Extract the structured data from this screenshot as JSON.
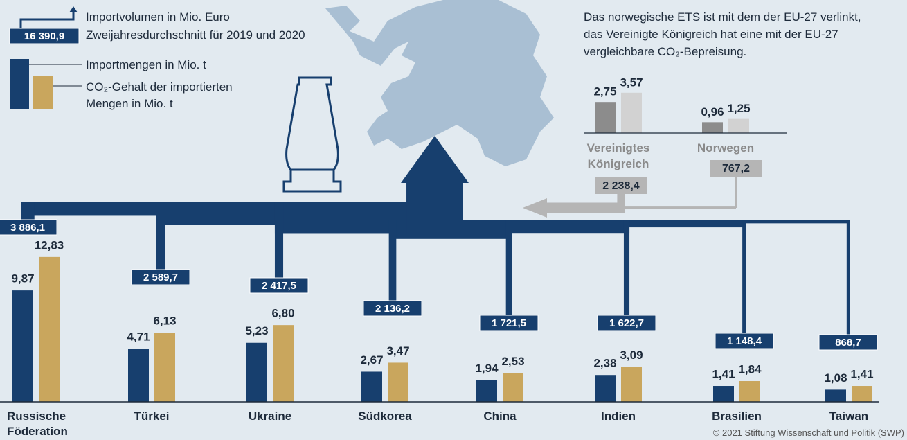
{
  "chart_data": [
    {
      "type": "bar",
      "categories": [
        "Russische Föderation",
        "Türkei",
        "Ukraine",
        "Südkorea",
        "China",
        "Indien",
        "Brasilien",
        "Taiwan"
      ],
      "series": [
        {
          "name": "Importmengen in Mio. t",
          "color": "#173f6e",
          "values": [
            9.87,
            4.71,
            5.23,
            2.67,
            1.94,
            2.38,
            1.41,
            1.08
          ],
          "value_labels": [
            "9,87",
            "4,71",
            "5,23",
            "2,67",
            "1,94",
            "2,38",
            "1,41",
            "1,08"
          ]
        },
        {
          "name": "CO₂-Gehalt der importierten Mengen in Mio. t",
          "color": "#c9a65d",
          "values": [
            12.83,
            6.13,
            6.8,
            3.47,
            2.53,
            3.09,
            1.84,
            1.41
          ],
          "value_labels": [
            "12,83",
            "6,13",
            "6,80",
            "3,47",
            "2,53",
            "3,09",
            "1,84",
            "1,41"
          ]
        }
      ],
      "import_volume": {
        "name": "Importvolumen in Mio. Euro Zweijahresdurchschnitt für 2019 und 2020",
        "color": "#173f6e",
        "total": 16390.9,
        "total_label": "16 390,9",
        "values": [
          3886.1,
          2589.7,
          2417.5,
          2136.2,
          1721.5,
          1622.7,
          1148.4,
          868.7
        ],
        "value_labels": [
          "3 886,1",
          "2 589,7",
          "2 417,5",
          "2 136,2",
          "1 721,5",
          "1 622,7",
          "1 148,4",
          "868,7"
        ]
      }
    },
    {
      "type": "bar",
      "note": "Das norwegische ETS ist mit dem der EU-27 verlinkt, das Vereinigte Königreich hat eine mit der EU-27 vergleichbare CO₂-Bepreisung.",
      "categories": [
        "Vereinigtes Königreich",
        "Norwegen"
      ],
      "series": [
        {
          "color": "#8c8c8c",
          "values": [
            2.75,
            0.96
          ],
          "value_labels": [
            "2,75",
            "0,96"
          ]
        },
        {
          "color": "#d2d2d2",
          "values": [
            3.57,
            1.25
          ],
          "value_labels": [
            "3,57",
            "1,25"
          ]
        }
      ],
      "import_volume": {
        "color": "#b5b5b5",
        "values": [
          2238.4,
          767.2
        ],
        "value_labels": [
          "2 238,4",
          "767,2"
        ]
      }
    }
  ],
  "source": "© 2021 Stiftung Wissenschaft und Politik (SWP)"
}
